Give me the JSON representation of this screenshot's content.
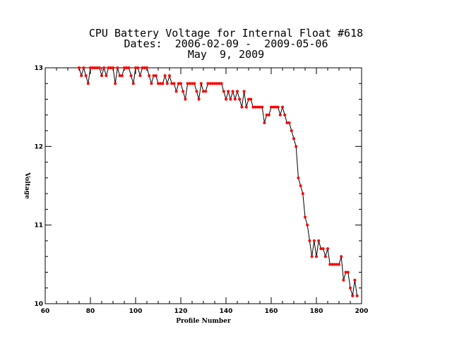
{
  "chart_data": {
    "type": "line",
    "title_lines": [
      "CPU Battery Voltage for Internal Float #618",
      "Dates:  2006-02-09 -  2009-05-06",
      "May  9, 2009"
    ],
    "xlabel": "Profile Number",
    "ylabel": "Voltage",
    "xlim": [
      60,
      200
    ],
    "ylim": [
      10,
      13
    ],
    "x_ticks": [
      60,
      80,
      100,
      120,
      140,
      160,
      180,
      200
    ],
    "y_ticks": [
      10,
      11,
      12,
      13
    ],
    "x_tick_labels": [
      "60",
      "80",
      "100",
      "120",
      "140",
      "160",
      "180",
      "200"
    ],
    "y_tick_labels": [
      "10",
      "11",
      "12",
      "13"
    ],
    "line_color": "#000000",
    "marker_color": "#ff0000",
    "grid": false,
    "series": [
      {
        "x": [
          75,
          76,
          77,
          78,
          79,
          80,
          81,
          82,
          83,
          84,
          85,
          86,
          87,
          88,
          89,
          90,
          91,
          92,
          93,
          94,
          95,
          96,
          97,
          98,
          99,
          100,
          101,
          102,
          103,
          104,
          105,
          106,
          107,
          108,
          109,
          110,
          111,
          112,
          113,
          114,
          115,
          116,
          117,
          118,
          119,
          120,
          121,
          122,
          123,
          124,
          125,
          126,
          127,
          128,
          129,
          130,
          131,
          132,
          133,
          134,
          135,
          136,
          137,
          138,
          139,
          140,
          141,
          142,
          143,
          144,
          145,
          146,
          147,
          148,
          149,
          150,
          151,
          152,
          153,
          154,
          155,
          156,
          157,
          158,
          159,
          160,
          161,
          162,
          163,
          164,
          165,
          166,
          167,
          168,
          169,
          170,
          171,
          172,
          173,
          174,
          175,
          176,
          177,
          178,
          179,
          180,
          181,
          182,
          183,
          184,
          185,
          186,
          187,
          188,
          189,
          190,
          191,
          192,
          193,
          194,
          195,
          196,
          197,
          198
        ],
        "y": [
          13.0,
          12.9,
          13.0,
          12.9,
          12.8,
          13.0,
          13.0,
          13.0,
          13.0,
          13.0,
          12.9,
          13.0,
          12.9,
          13.0,
          13.0,
          13.0,
          12.8,
          13.0,
          12.9,
          12.9,
          13.0,
          13.0,
          13.0,
          12.9,
          12.8,
          13.0,
          13.0,
          12.9,
          13.0,
          13.0,
          13.0,
          12.9,
          12.8,
          12.9,
          12.9,
          12.8,
          12.8,
          12.8,
          12.9,
          12.8,
          12.9,
          12.8,
          12.8,
          12.7,
          12.8,
          12.8,
          12.7,
          12.6,
          12.8,
          12.8,
          12.8,
          12.8,
          12.7,
          12.6,
          12.8,
          12.7,
          12.7,
          12.8,
          12.8,
          12.8,
          12.8,
          12.8,
          12.8,
          12.8,
          12.7,
          12.6,
          12.7,
          12.6,
          12.7,
          12.6,
          12.7,
          12.6,
          12.5,
          12.7,
          12.5,
          12.6,
          12.6,
          12.5,
          12.5,
          12.5,
          12.5,
          12.5,
          12.3,
          12.4,
          12.4,
          12.5,
          12.5,
          12.5,
          12.5,
          12.4,
          12.5,
          12.4,
          12.3,
          12.3,
          12.2,
          12.1,
          12.0,
          11.6,
          11.5,
          11.4,
          11.1,
          11.0,
          10.8,
          10.6,
          10.8,
          10.6,
          10.8,
          10.7,
          10.7,
          10.6,
          10.7,
          10.5,
          10.5,
          10.5,
          10.5,
          10.5,
          10.6,
          10.3,
          10.4,
          10.4,
          10.2,
          10.1,
          10.3,
          10.1
        ]
      }
    ]
  }
}
